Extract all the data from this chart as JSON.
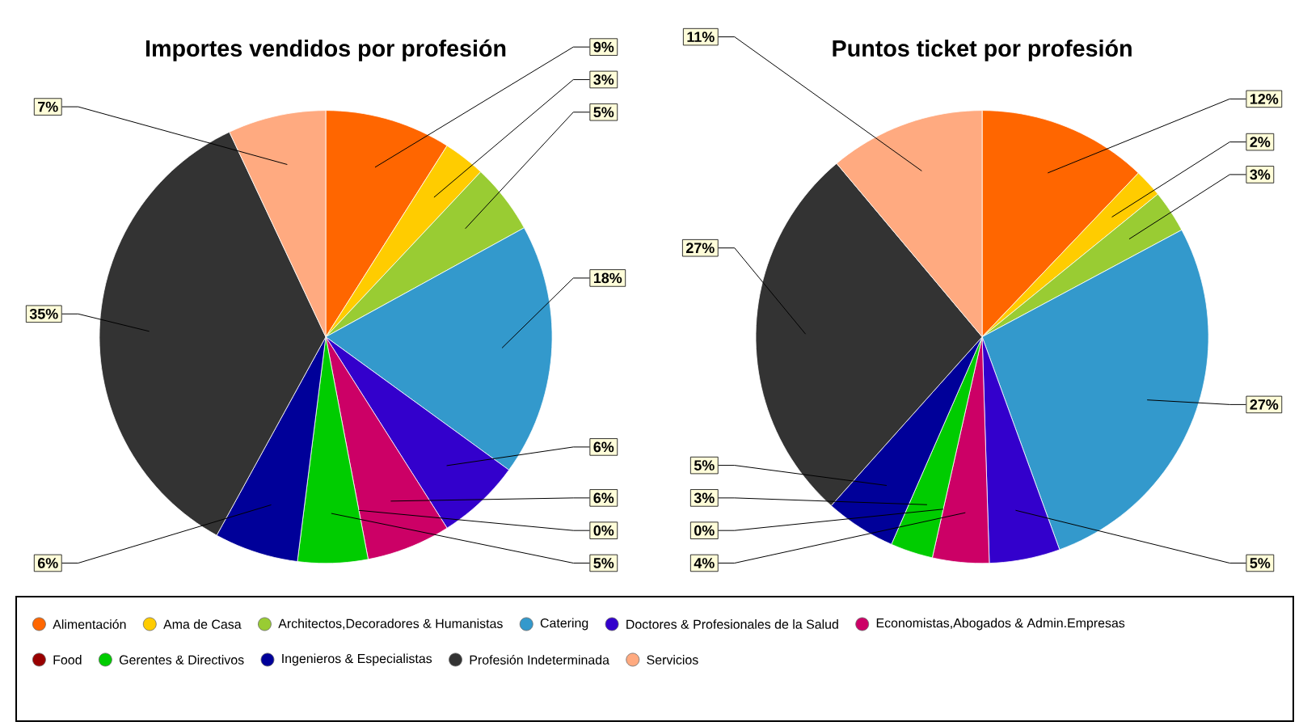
{
  "chart_data": [
    {
      "type": "pie",
      "title": "Importes vendidos por profesión",
      "categories": [
        "Alimentación",
        "Ama de Casa",
        "Architectos,Decoradores & Humanistas",
        "Catering",
        "Doctores & Profesionales de la Salud",
        "Economistas,Abogados & Admin.Empresas",
        "Food",
        "Gerentes & Directivos",
        "Ingenieros & Especialistas",
        "Profesión Indeterminada",
        "Servicios"
      ],
      "values": [
        9,
        3,
        5,
        18,
        6,
        6,
        0,
        5,
        6,
        35,
        7
      ],
      "value_labels": [
        "9%",
        "3%",
        "5%",
        "18%",
        "6%",
        "6%",
        "0%",
        "5%",
        "6%",
        "35%",
        "7%"
      ],
      "colors": [
        "#ff6600",
        "#ffcc00",
        "#99cc33",
        "#3399cc",
        "#3300cc",
        "#cc0066",
        "#990000",
        "#00cc00",
        "#000099",
        "#333333",
        "#ffaa80"
      ],
      "legend": "bottom"
    },
    {
      "type": "pie",
      "title": "Puntos ticket por profesión",
      "categories": [
        null,
        null,
        null,
        null,
        null,
        null,
        null,
        null,
        null,
        null,
        null
      ],
      "values": [
        12,
        2,
        3,
        27,
        5,
        4,
        0,
        3,
        5,
        27,
        11
      ],
      "value_labels": [
        "12%",
        "2%",
        "3%",
        "27%",
        "5%",
        "4%",
        "0%",
        "3%",
        "5%",
        "27%",
        "11%"
      ],
      "colors": [
        "#ff6600",
        "#ffcc00",
        "#99cc33",
        "#3399cc",
        "#3300cc",
        "#cc0066",
        "#990000",
        "#00cc00",
        "#000099",
        "#333333",
        "#ffaa80"
      ]
    }
  ]
}
